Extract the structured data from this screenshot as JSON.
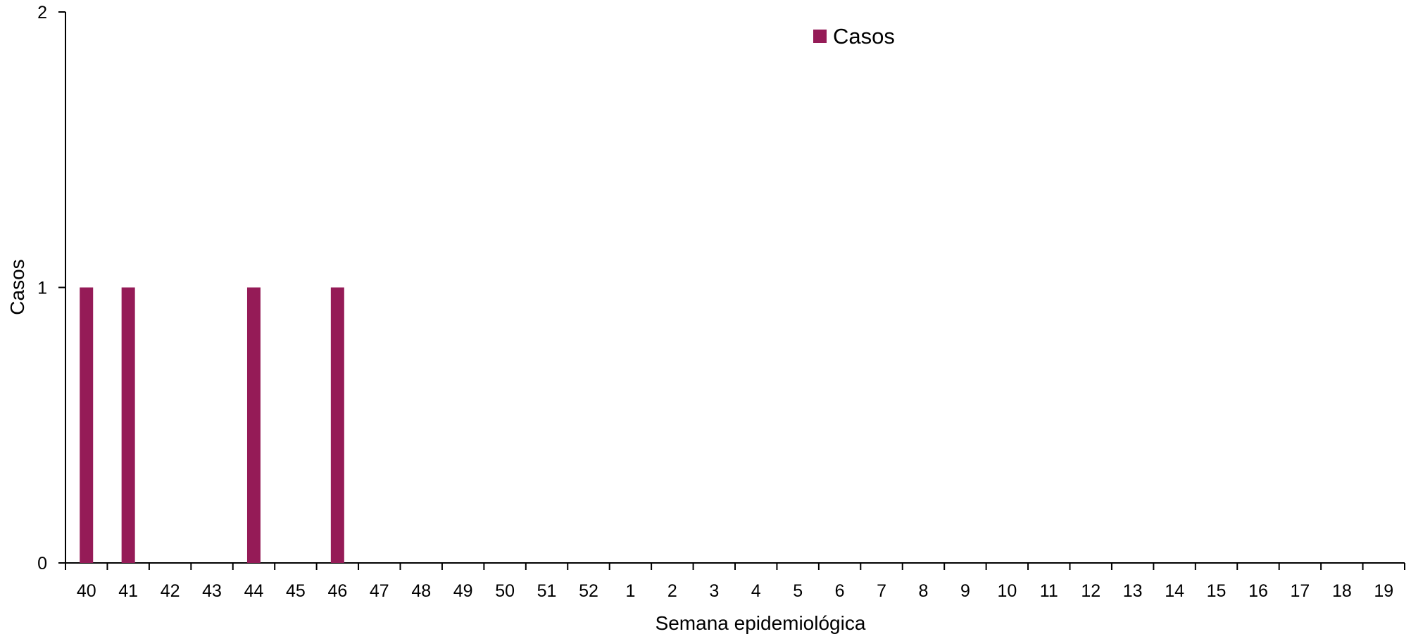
{
  "chart_data": {
    "type": "bar",
    "xlabel": "Semana epidemiológica",
    "ylabel": "Casos",
    "ylim": [
      0,
      2
    ],
    "yticks": [
      0,
      1,
      2
    ],
    "grid": false,
    "legend_position": "top-center",
    "categories": [
      "40",
      "41",
      "42",
      "43",
      "44",
      "45",
      "46",
      "47",
      "48",
      "49",
      "50",
      "51",
      "52",
      "1",
      "2",
      "3",
      "4",
      "5",
      "6",
      "7",
      "8",
      "9",
      "10",
      "11",
      "12",
      "13",
      "14",
      "15",
      "16",
      "17",
      "18",
      "19"
    ],
    "series": [
      {
        "name": "Casos",
        "color": "#951B57",
        "values": [
          1,
          1,
          0,
          0,
          1,
          0,
          1,
          0,
          0,
          0,
          0,
          0,
          0,
          0,
          0,
          0,
          0,
          0,
          0,
          0,
          0,
          0,
          0,
          0,
          0,
          0,
          0,
          0,
          0,
          0,
          0,
          0
        ]
      }
    ]
  }
}
